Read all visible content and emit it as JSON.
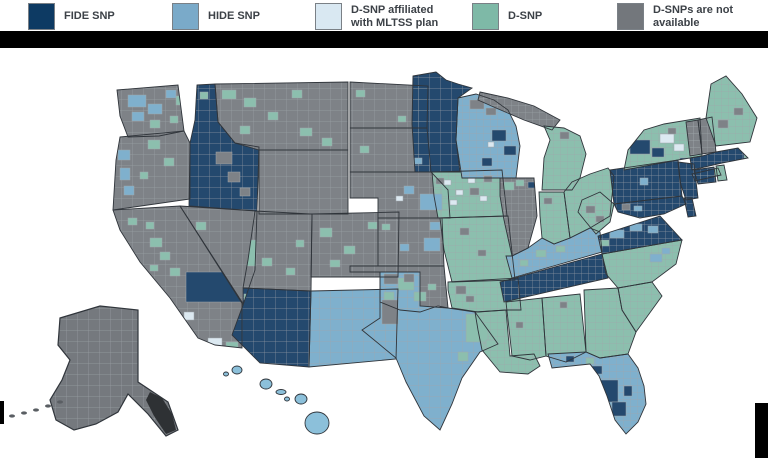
{
  "legend": {
    "text_color": "#3c4147",
    "items": [
      {
        "key": "fide",
        "label": "FIDE SNP",
        "color": "#0d3a63"
      },
      {
        "key": "hide",
        "label": "HIDE SNP",
        "color": "#7aaac9"
      },
      {
        "key": "mltss",
        "label": "D-SNP affiliated\nwith MLTSS plan",
        "color": "#d9e8f2"
      },
      {
        "key": "dsnp",
        "label": "D-SNP",
        "color": "#7eb9a7"
      },
      {
        "key": "na",
        "label": "D-SNPs are not\navailable",
        "color": "#73777c"
      }
    ]
  },
  "decor": {
    "top_bar_color": "#000000",
    "edge_bar_color": "#000000"
  },
  "map": {
    "colors": {
      "fide": "#24496e",
      "hide": "#7fb0cd",
      "mltss": "#dce9f1",
      "dsnp": "#8cbfae",
      "na": "#7e8287",
      "ak_na": "#75797e",
      "hi_hide": "#8cc0da",
      "ak_islands": "#2e3134",
      "county_line": "#a0a6ab",
      "state_line": "#30353b"
    },
    "states": [
      {
        "id": "WA",
        "name": "Washington",
        "category": "na"
      },
      {
        "id": "OR",
        "name": "Oregon",
        "category": "na"
      },
      {
        "id": "CA",
        "name": "California",
        "category": "na"
      },
      {
        "id": "NV",
        "name": "Nevada",
        "category": "na"
      },
      {
        "id": "ID",
        "name": "Idaho",
        "category": "fide"
      },
      {
        "id": "MT",
        "name": "Montana",
        "category": "na"
      },
      {
        "id": "WY",
        "name": "Wyoming",
        "category": "na"
      },
      {
        "id": "UT",
        "name": "Utah",
        "category": "na"
      },
      {
        "id": "CO",
        "name": "Colorado",
        "category": "na"
      },
      {
        "id": "AZ",
        "name": "Arizona",
        "category": "fide"
      },
      {
        "id": "NM",
        "name": "New Mexico",
        "category": "hide"
      },
      {
        "id": "ND",
        "name": "North Dakota",
        "category": "na"
      },
      {
        "id": "SD",
        "name": "South Dakota",
        "category": "na"
      },
      {
        "id": "NE",
        "name": "Nebraska",
        "category": "na"
      },
      {
        "id": "KS",
        "name": "Kansas",
        "category": "na"
      },
      {
        "id": "OK",
        "name": "Oklahoma",
        "category": "na"
      },
      {
        "id": "TX",
        "name": "Texas",
        "category": "hide"
      },
      {
        "id": "MN",
        "name": "Minnesota",
        "category": "fide"
      },
      {
        "id": "IA",
        "name": "Iowa",
        "category": "dsnp"
      },
      {
        "id": "MO",
        "name": "Missouri",
        "category": "dsnp"
      },
      {
        "id": "AR",
        "name": "Arkansas",
        "category": "dsnp"
      },
      {
        "id": "LA",
        "name": "Louisiana",
        "category": "dsnp"
      },
      {
        "id": "WI",
        "name": "Wisconsin",
        "category": "hide"
      },
      {
        "id": "IL",
        "name": "Illinois",
        "category": "na"
      },
      {
        "id": "MIUP",
        "name": "Michigan Upper Peninsula",
        "category": "na"
      },
      {
        "id": "MI",
        "name": "Michigan",
        "category": "dsnp"
      },
      {
        "id": "IN",
        "name": "Indiana",
        "category": "dsnp"
      },
      {
        "id": "OH",
        "name": "Ohio",
        "category": "dsnp"
      },
      {
        "id": "KY",
        "name": "Kentucky",
        "category": "hide"
      },
      {
        "id": "TN",
        "name": "Tennessee",
        "category": "fide"
      },
      {
        "id": "MS",
        "name": "Mississippi",
        "category": "dsnp"
      },
      {
        "id": "AL",
        "name": "Alabama",
        "category": "dsnp"
      },
      {
        "id": "GA",
        "name": "Georgia",
        "category": "dsnp"
      },
      {
        "id": "FL",
        "name": "Florida",
        "category": "hide"
      },
      {
        "id": "SC",
        "name": "South Carolina",
        "category": "dsnp"
      },
      {
        "id": "NC",
        "name": "North Carolina",
        "category": "dsnp"
      },
      {
        "id": "VA",
        "name": "Virginia",
        "category": "fide"
      },
      {
        "id": "WV",
        "name": "West Virginia",
        "category": "dsnp"
      },
      {
        "id": "PA",
        "name": "Pennsylvania",
        "category": "fide"
      },
      {
        "id": "NY",
        "name": "New York",
        "category": "dsnp"
      },
      {
        "id": "NJ",
        "name": "New Jersey",
        "category": "fide"
      },
      {
        "id": "MD",
        "name": "Maryland",
        "category": "fide"
      },
      {
        "id": "DE",
        "name": "Delaware",
        "category": "fide"
      },
      {
        "id": "VT",
        "name": "Vermont",
        "category": "na"
      },
      {
        "id": "NH",
        "name": "New Hampshire",
        "category": "na"
      },
      {
        "id": "MA",
        "name": "Massachusetts",
        "category": "fide"
      },
      {
        "id": "CT",
        "name": "Connecticut",
        "category": "fide"
      },
      {
        "id": "RI",
        "name": "Rhode Island",
        "category": "dsnp"
      },
      {
        "id": "ME",
        "name": "Maine",
        "category": "dsnp"
      },
      {
        "id": "AK",
        "name": "Alaska",
        "category": "na"
      },
      {
        "id": "HI",
        "name": "Hawaii",
        "category": "hide"
      }
    ]
  }
}
